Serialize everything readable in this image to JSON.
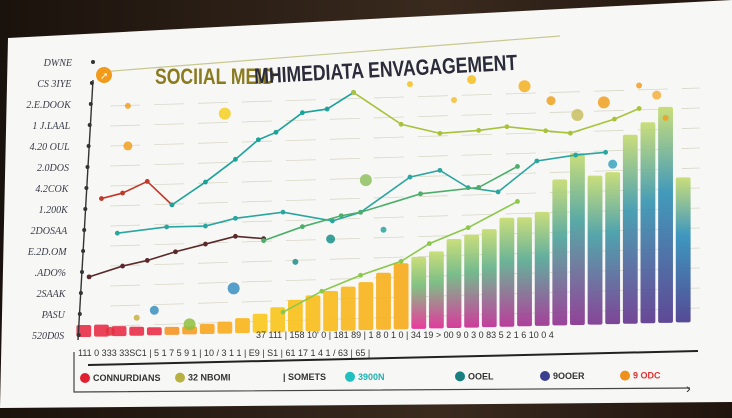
{
  "chart_data": {
    "type": "bar",
    "title_part1": "SOCIIAL MEID",
    "title_part2": "MHIMEDIATA ENVAGAGEMENT",
    "ylim": [
      0,
      260
    ],
    "grid": true,
    "legend_placement": "bottom",
    "y_tick_labels": [
      "DWNE",
      "CS 3IYE",
      "2.E.DOOK",
      "1 J.LAAL",
      "4.20 OUL",
      "2.0DOS",
      "4.2COK",
      "1.200K",
      "2DOSAA",
      "E.2D.OM",
      ".ADO%",
      "2SAAK",
      "PASU",
      "520D0S"
    ],
    "x_tick_labels_upper": "37 111 | 158 10' 0 | 181 89 | 1 8 0 1 0 |  34  19 > 00  9 0 3 0 83  5 2 1  6 10  0 4",
    "x_tick_labels_lower": "111 0  333  33SC1 | 5 1 7 5 9 1 | 10 / 3 1 1 | E9 | S1 | 61 17 1 4 1 / 63 | 65 |",
    "bars": [
      12,
      12,
      10,
      9,
      8,
      8,
      8,
      10,
      12,
      15,
      19,
      25,
      32,
      36,
      40,
      44,
      48,
      57,
      66,
      72,
      77,
      89,
      93,
      98,
      109,
      109,
      114,
      146,
      172,
      149,
      152,
      189,
      201,
      216,
      145
    ],
    "series": [
      {
        "color": "#c0392b",
        "x": [
          1.0,
          2.2,
          3.6,
          5.0
        ],
        "y": [
          138,
          143,
          154,
          130
        ]
      },
      {
        "color": "#1aa39a",
        "x": [
          5.0,
          6.9,
          8.6,
          9.9,
          10.9,
          12.4,
          13.8,
          15.3
        ],
        "y": [
          130,
          152,
          174,
          193,
          200,
          219,
          222,
          238
        ]
      },
      {
        "color": "#a8c23a",
        "x": [
          15.3,
          18.0,
          20.2,
          22.4,
          24.0,
          26.2,
          27.6,
          30.1,
          31.5
        ],
        "y": [
          238,
          205,
          195,
          197,
          200,
          195,
          192,
          205,
          215
        ]
      },
      {
        "color": "#2aa5a0",
        "x": [
          1.9,
          4.7,
          6.9,
          8.6,
          11.3,
          14.1,
          15.7,
          18.5,
          20.2,
          21.8,
          23.5,
          25.7,
          27.9,
          29.6
        ],
        "y": [
          103,
          108,
          108,
          115,
          120,
          110,
          118,
          152,
          158,
          140,
          135,
          165,
          170,
          172
        ]
      },
      {
        "color": "#5a2a2a",
        "x": [
          0.3,
          2.2,
          3.6,
          5.2,
          6.9,
          8.6,
          10.2
        ],
        "y": [
          60,
          70,
          75,
          83,
          90,
          97,
          94
        ]
      },
      {
        "color": "#4cae6a",
        "x": [
          10.2,
          12.4,
          14.6,
          15.7,
          19.1,
          22.4,
          24.6
        ],
        "y": [
          92,
          105,
          115,
          118,
          135,
          140,
          160
        ]
      },
      {
        "color": "#8cc84b",
        "x": [
          11.3,
          13.5,
          15.7,
          18.0,
          19.6,
          21.8,
          24.6
        ],
        "y": [
          20,
          40,
          55,
          68,
          85,
          100,
          125
        ]
      }
    ],
    "dots": [
      {
        "x": 2.5,
        "y": 230,
        "c": "#f0a020"
      },
      {
        "x": 2.5,
        "y": 190,
        "c": "#f0a020"
      },
      {
        "x": 8,
        "y": 220,
        "c": "#f5d020"
      },
      {
        "x": 18.5,
        "y": 245,
        "c": "#f5c020"
      },
      {
        "x": 22,
        "y": 248,
        "c": "#f5c020"
      },
      {
        "x": 25,
        "y": 240,
        "c": "#f5b020"
      },
      {
        "x": 21,
        "y": 228,
        "c": "#f5c030"
      },
      {
        "x": 26.5,
        "y": 225,
        "c": "#f0a020"
      },
      {
        "x": 29.5,
        "y": 222,
        "c": "#f0a020"
      },
      {
        "x": 31.5,
        "y": 238,
        "c": "#f0a020"
      },
      {
        "x": 32.5,
        "y": 228,
        "c": "#f5b040"
      },
      {
        "x": 28,
        "y": 210,
        "c": "#c8c060"
      },
      {
        "x": 33,
        "y": 205,
        "c": "#f0a020"
      },
      {
        "x": 14,
        "y": 92,
        "c": "#1a8f8a"
      },
      {
        "x": 8.5,
        "y": 45,
        "c": "#3a8fc0"
      },
      {
        "x": 12,
        "y": 70,
        "c": "#1a8f8a"
      },
      {
        "x": 4,
        "y": 25,
        "c": "#3a8fc0"
      },
      {
        "x": 6,
        "y": 10,
        "c": "#8fc040"
      },
      {
        "x": 3,
        "y": 18,
        "c": "#c8b040"
      },
      {
        "x": 30,
        "y": 160,
        "c": "#3aa5c0"
      },
      {
        "x": 16,
        "y": 150,
        "c": "#8fc060"
      },
      {
        "x": 17,
        "y": 100,
        "c": "#2aa5a0"
      },
      {
        "x": 1.5,
        "y": 5,
        "c": "#e03040"
      }
    ],
    "legend": [
      {
        "label": "CONNURDIANS",
        "color": "#e02030",
        "text_color": "#333"
      },
      {
        "label": "32 NBOMI",
        "color": "#b8b040",
        "text_color": "#333"
      },
      {
        "label": "| SOMETS",
        "color": "",
        "text_color": "#333"
      },
      {
        "label": "3900N",
        "color": "#20c0c0",
        "text_color": "#20b0b0"
      },
      {
        "label": "OOEL",
        "color": "#1a7f80",
        "text_color": "#333"
      },
      {
        "label": "9OOER",
        "color": "#3a3f8f",
        "text_color": "#333"
      },
      {
        "label": "9 ODC",
        "color": "#f0901a",
        "text_color": "#e03030"
      }
    ]
  }
}
